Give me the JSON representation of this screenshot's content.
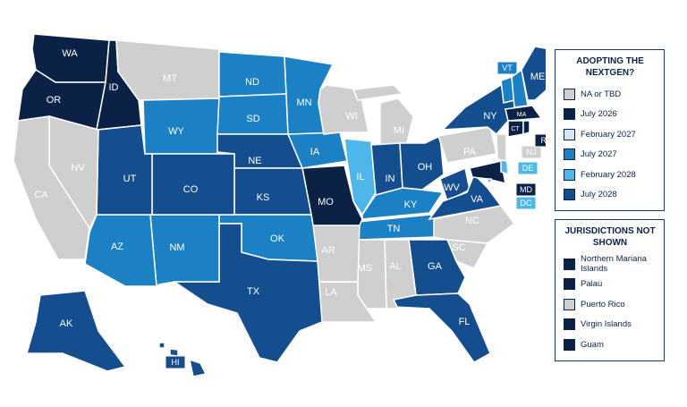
{
  "legend": {
    "title": "ADOPTING THE NEXTGEN?",
    "categories": [
      {
        "label": "NA or TBD",
        "color": "#cfcfcf"
      },
      {
        "label": "July 2026",
        "color": "#0b2145"
      },
      {
        "label": "February 2027",
        "color": "#d4e6f8"
      },
      {
        "label": "July 2027",
        "color": "#1b80c4"
      },
      {
        "label": "February 2028",
        "color": "#4fb6ea"
      },
      {
        "label": "July 2028",
        "color": "#154e8e"
      }
    ]
  },
  "states": [
    {
      "label": "WA",
      "category": 1
    },
    {
      "label": "OR",
      "category": 1
    },
    {
      "label": "ID",
      "category": 1
    },
    {
      "label": "MT",
      "category": 0
    },
    {
      "label": "WY",
      "category": 3
    },
    {
      "label": "ND",
      "category": 3
    },
    {
      "label": "SD",
      "category": 3
    },
    {
      "label": "NE",
      "category": 5
    },
    {
      "label": "MN",
      "category": 3
    },
    {
      "label": "IA",
      "category": 3
    },
    {
      "label": "WI",
      "category": 0
    },
    {
      "label": "MI",
      "category": 0
    },
    {
      "label": "IL",
      "category": 4
    },
    {
      "label": "IN",
      "category": 5
    },
    {
      "label": "OH",
      "category": 5
    },
    {
      "label": "KY",
      "category": 3
    },
    {
      "label": "TN",
      "category": 3
    },
    {
      "label": "WV",
      "category": 5
    },
    {
      "label": "VA",
      "category": 5
    },
    {
      "label": "MD",
      "category": 1
    },
    {
      "label": "DE",
      "category": 4
    },
    {
      "label": "DC",
      "category": 4
    },
    {
      "label": "NJ",
      "category": 0
    },
    {
      "label": "PA",
      "category": 0
    },
    {
      "label": "NY",
      "category": 5
    },
    {
      "label": "VT",
      "category": 3
    },
    {
      "label": null,
      "category": 3
    },
    {
      "label": "ME",
      "category": 5
    },
    {
      "label": "MA",
      "category": 1
    },
    {
      "label": "CT",
      "category": 1
    },
    {
      "label": "RI",
      "category": 1
    },
    {
      "label": "NC",
      "category": 0
    },
    {
      "label": "SC",
      "category": 0
    },
    {
      "label": "GA",
      "category": 5
    },
    {
      "label": "FL",
      "category": 5
    },
    {
      "label": "AL",
      "category": 0
    },
    {
      "label": "MS",
      "category": 0
    },
    {
      "label": "LA",
      "category": 0
    },
    {
      "label": "AR",
      "category": 0
    },
    {
      "label": "MO",
      "category": 1
    },
    {
      "label": "KS",
      "category": 5
    },
    {
      "label": "OK",
      "category": 3
    },
    {
      "label": "TX",
      "category": 5
    },
    {
      "label": "NM",
      "category": 3
    },
    {
      "label": "AZ",
      "category": 3
    },
    {
      "label": "CO",
      "category": 5
    },
    {
      "label": "UT",
      "category": 5
    },
    {
      "label": "NV",
      "category": 0
    },
    {
      "label": "CA",
      "category": 0
    },
    {
      "label": "AK",
      "category": 5
    },
    {
      "label": "HI",
      "category": 5
    }
  ],
  "jurisdictions_not_shown": {
    "title": "JURISDICTIONS NOT SHOWN",
    "items": [
      {
        "label": "Northern Mariana Islands",
        "category": 1
      },
      {
        "label": "Palau",
        "category": 1
      },
      {
        "label": "Puerto Rico",
        "category": 0
      },
      {
        "label": "Virgin Islands",
        "category": 1
      },
      {
        "label": "Guam",
        "category": 1
      }
    ]
  }
}
